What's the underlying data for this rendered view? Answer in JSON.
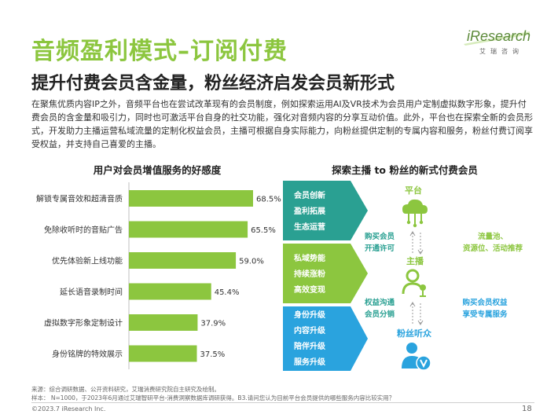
{
  "header": {
    "title": "音频盈利模式–订阅付费",
    "subtitle": "提升付费会员含金量，粉丝经济启发会员新形式",
    "logo_text": "iResearch",
    "logo_sub": "艾瑞咨询"
  },
  "intro_text": "在聚焦优质内容IP之外，音频平台也在尝试改革现有的会员制度，例如探索运用AI及VR技术为会员用户定制虚拟数字形象，提升付费会员的含金量和吸引力，同时也可激活平台自身的社交功能，强化对音频内容的分享互动价值。此外，平台也在探索全新的会员形式，开发助力主播运营私域流量的定制化权益会员，主播可根据自身实际能力，向粉丝提供定制的专属内容和服务，粉丝付费订阅享受权益，并支持自己喜爱的主播。",
  "chart_data": {
    "type": "bar",
    "orientation": "horizontal",
    "title": "用户对会员增值服务的好感度",
    "categories": [
      "解锁专属音效和超清音质",
      "免除收听时的音贴广告",
      "优先体验新上线功能",
      "延长语音录制时间",
      "虚拟数字形象定制设计",
      "身份铭牌的特效展示"
    ],
    "values": [
      68.5,
      65.5,
      59.0,
      45.4,
      37.9,
      37.5
    ],
    "value_labels": [
      "68.5%",
      "65.5%",
      "59.0%",
      "45.4%",
      "37.9%",
      "37.5%"
    ],
    "unit": "%",
    "xlim": [
      0,
      75
    ],
    "grid": false,
    "legend": "none",
    "bar_color": "#8cc63f"
  },
  "diagram": {
    "title": "探索主播 to 粉丝的新式付费会员",
    "bands": [
      {
        "lines": [
          "会员创新",
          "盈利拓展",
          "生态运营"
        ],
        "color": "#2aa092"
      },
      {
        "lines": [
          "私域势能",
          "持续涨粉",
          "高效变现"
        ],
        "color": "#8cc63f"
      },
      {
        "lines": [
          "身份升级",
          "内容升级",
          "陪伴升级",
          "服务升级"
        ],
        "color": "#2aa3de"
      }
    ],
    "nodes": {
      "platform": "平台",
      "streamer": "主播",
      "fans": "粉丝听众"
    },
    "left_labels": {
      "upper": [
        "购买会员",
        "开通许可"
      ],
      "lower": [
        "权益沟通",
        "会员分销"
      ]
    },
    "right_labels": {
      "upper": [
        "流量池、",
        "资源位、活动推荐"
      ],
      "lower": [
        "购买会员权益",
        "享受专属服务"
      ]
    },
    "colors": {
      "green": "#8cc63f",
      "teal": "#2aa092",
      "blue": "#2aa3de"
    }
  },
  "footer": {
    "source_line1": "来源：综合调研数据、公开资料研究，艾瑞消费研究院自主研究及绘制。",
    "source_line2": "样本： N=1000，于2023年6月通过艾瑞智研平台-消费洞察数据库调研获得。B3.请问您认为目前平台会员提供的哪些服务内容比较实用？",
    "copyright": "©2023.7 iResearch Inc.",
    "page_number": "18"
  }
}
